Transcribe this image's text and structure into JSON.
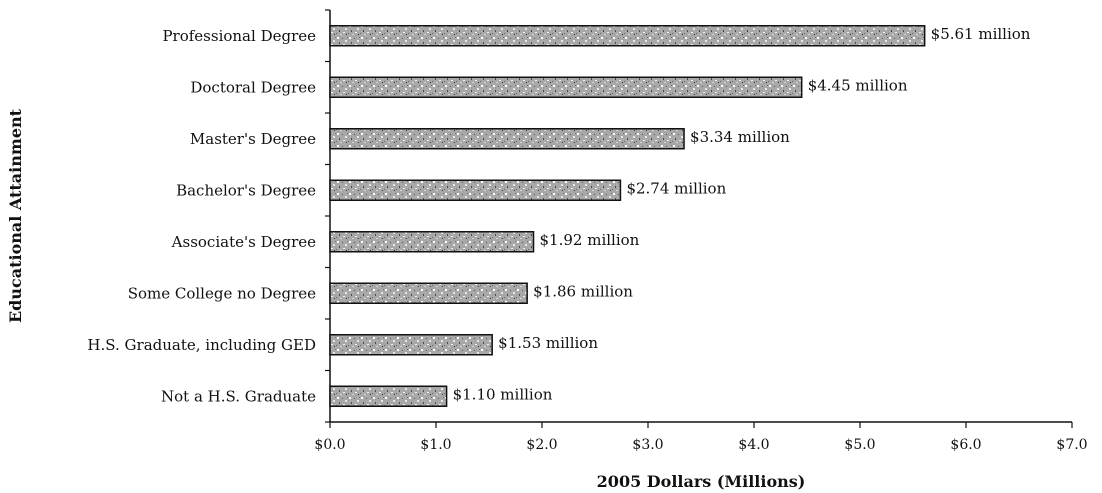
{
  "chart_data": {
    "type": "bar",
    "orientation": "horizontal",
    "categories": [
      "Professional Degree",
      "Doctoral Degree",
      "Master's Degree",
      "Bachelor's Degree",
      "Associate's Degree",
      "Some College no Degree",
      "H.S. Graduate, including GED",
      "Not a H.S. Graduate"
    ],
    "values": [
      5.61,
      4.45,
      3.34,
      2.74,
      1.92,
      1.86,
      1.53,
      1.1
    ],
    "data_labels": [
      "$5.61 million",
      "$4.45 million",
      "$3.34 million",
      "$2.74 million",
      "$1.92 million",
      "$1.86 million",
      "$1.53 million",
      "$1.10 million"
    ],
    "xlim": [
      0,
      7
    ],
    "x_ticks": [
      0,
      1,
      2,
      3,
      4,
      5,
      6,
      7
    ],
    "x_tick_labels": [
      "$0.0",
      "$1.0",
      "$2.0",
      "$3.0",
      "$4.0",
      "$5.0",
      "$6.0",
      "$7.0"
    ],
    "xlabel": "2005 Dollars (Millions)",
    "ylabel": "Educational Attainment",
    "title": "",
    "grid": false,
    "legend": "none",
    "bar_fill": "#9a9a9a",
    "bar_pattern": "speckled gray",
    "bar_outline": "#111111"
  }
}
